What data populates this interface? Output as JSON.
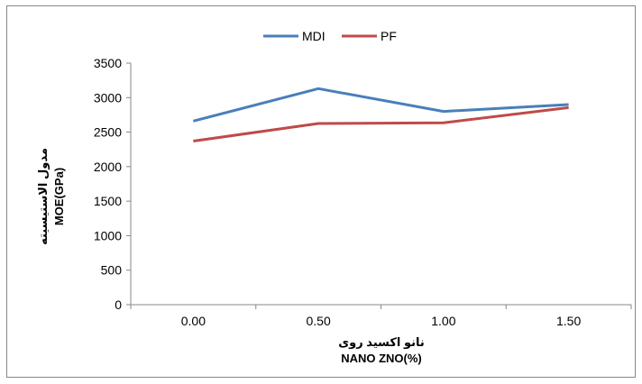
{
  "chart_data": {
    "type": "line",
    "categories": [
      "0.00",
      "0.50",
      "1.00",
      "1.50"
    ],
    "series": [
      {
        "name": "MDI",
        "values": [
          2660,
          3130,
          2800,
          2900
        ],
        "color": "#4a7ebb"
      },
      {
        "name": "PF",
        "values": [
          2370,
          2625,
          2635,
          2855
        ],
        "color": "#be4b48"
      }
    ],
    "xlabel_fa": "نانو اکسید روی",
    "xlabel": "NANO ZNO(%)",
    "ylabel_fa": "مدول الاستیسیته",
    "ylabel": "MOE(GPa)",
    "ylim": [
      0,
      3500
    ],
    "yticks": [
      "0",
      "500",
      "1000",
      "1500",
      "2000",
      "2500",
      "3000",
      "3500"
    ],
    "grid": false,
    "legend_position": "top-center"
  }
}
